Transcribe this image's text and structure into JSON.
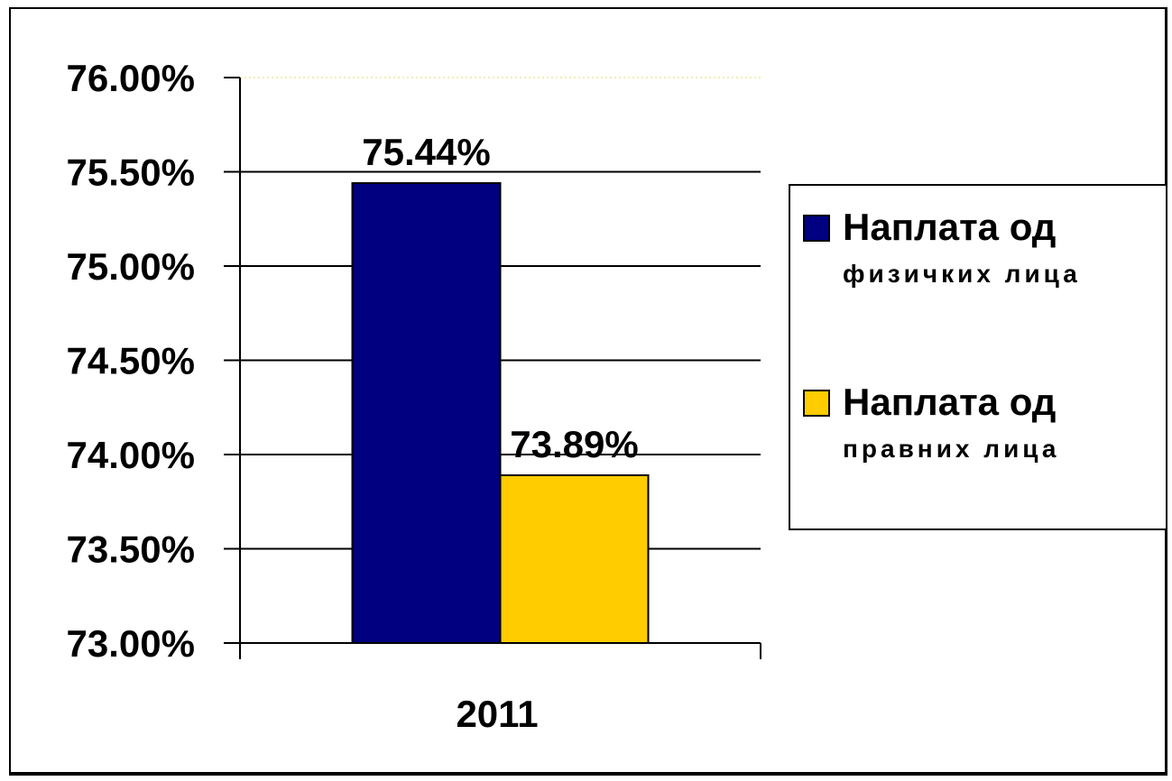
{
  "chart_data": {
    "type": "bar",
    "categories": [
      "2011"
    ],
    "series": [
      {
        "name": "Наплата од физичких лица",
        "legend_line1": "Наплата од",
        "legend_line2": "физичких лица",
        "values": [
          0.7544
        ],
        "label": "75.44%",
        "color": "#000080"
      },
      {
        "name": "Наплата од правних лица",
        "legend_line1": "Наплата од",
        "legend_line2": "правних лица",
        "values": [
          0.7389
        ],
        "label": "73.89%",
        "color": "#FFCC00"
      }
    ],
    "y_ticks": [
      "73.00%",
      "73.50%",
      "74.00%",
      "74.50%",
      "75.00%",
      "75.50%",
      "76.00%"
    ],
    "y_tick_values": [
      0.73,
      0.735,
      0.74,
      0.745,
      0.75,
      0.755,
      0.76
    ],
    "ylim": [
      0.73,
      0.76
    ],
    "grid": true,
    "legend_position": "right",
    "title": "",
    "xlabel": "",
    "ylabel": ""
  }
}
